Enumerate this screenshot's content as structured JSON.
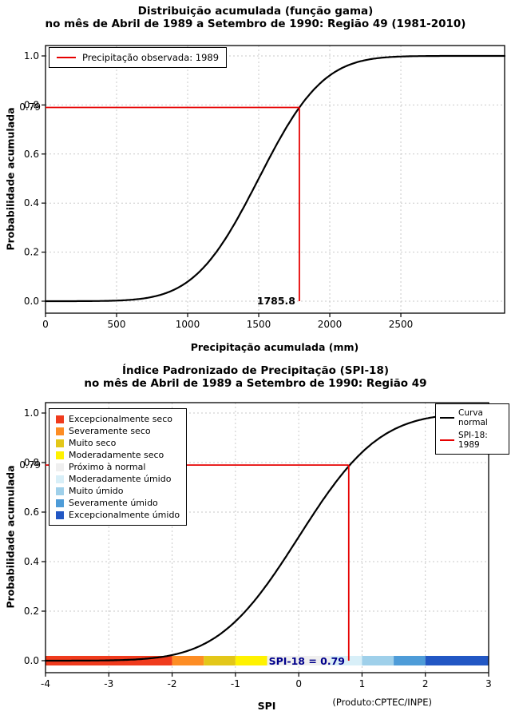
{
  "accent_red": "#E60000",
  "chart_data": [
    {
      "type": "line",
      "title": "Distribuição acumulada (função gama)",
      "subtitle": "no mês de Abril de 1989 a Setembro de 1990: Região 49 (1981-2010)",
      "xlabel": "Precipitação acumulada (mm)",
      "ylabel": "Probabilidade acumulada",
      "xlim": [
        0,
        3230
      ],
      "ylim": [
        0,
        1
      ],
      "xticks": [
        0,
        500,
        1000,
        1500,
        2000,
        2500
      ],
      "yticks": [
        0,
        0.2,
        0.4,
        0.6,
        0.8,
        1.0
      ],
      "grid": true,
      "legend": {
        "position": "top-left",
        "entries": [
          {
            "label": "Precipitação observada: 1989",
            "color": "#E60000",
            "type": "line"
          }
        ]
      },
      "series": [
        {
          "name": "Distribuição acumulada (função gama)",
          "color": "#000000",
          "model": "normal_cdf",
          "mean": 1500,
          "sd": 355,
          "points": [
            [
              0,
              0.0
            ],
            [
              200,
              0.0
            ],
            [
              400,
              0.001
            ],
            [
              600,
              0.006
            ],
            [
              700,
              0.012
            ],
            [
              800,
              0.024
            ],
            [
              900,
              0.046
            ],
            [
              1000,
              0.079
            ],
            [
              1100,
              0.129
            ],
            [
              1200,
              0.199
            ],
            [
              1300,
              0.287
            ],
            [
              1400,
              0.389
            ],
            [
              1500,
              0.5
            ],
            [
              1600,
              0.611
            ],
            [
              1700,
              0.713
            ],
            [
              1785.8,
              0.79
            ],
            [
              1900,
              0.87
            ],
            [
              2000,
              0.921
            ],
            [
              2100,
              0.954
            ],
            [
              2200,
              0.976
            ],
            [
              2300,
              0.988
            ],
            [
              2400,
              0.994
            ],
            [
              2500,
              0.998
            ],
            [
              2700,
              1.0
            ],
            [
              3000,
              1.0
            ]
          ]
        }
      ],
      "marker": {
        "x": 1785.8,
        "y": 0.79,
        "x_label": "1785.8",
        "y_label": "0.79",
        "color": "#E60000"
      }
    },
    {
      "type": "line",
      "title": "Índice Padronizado de Precipitação (SPI-18)",
      "subtitle": "no mês de Abril de 1989 a Setembro de 1990: Região 49",
      "xlabel": "SPI",
      "ylabel": "Probabilidade acumulada",
      "xlim": [
        -4,
        3
      ],
      "ylim": [
        0,
        1
      ],
      "xticks": [
        -4,
        -3,
        -2,
        -1,
        0,
        1,
        2,
        3
      ],
      "yticks": [
        0,
        0.2,
        0.4,
        0.6,
        0.8,
        1.0
      ],
      "grid": true,
      "footnote": "(Produto:CPTEC/INPE)",
      "legend_right": {
        "position": "top-right",
        "entries": [
          {
            "label": "Curva\nnormal",
            "color": "#000000",
            "type": "line"
          },
          {
            "label": "SPI-18: 1989",
            "color": "#E60000",
            "type": "line"
          }
        ]
      },
      "series": [
        {
          "name": "Curva normal",
          "color": "#000000",
          "model": "normal_cdf",
          "mean": 0,
          "sd": 1,
          "points": [
            [
              -4,
              0.0
            ],
            [
              -3.5,
              0.0
            ],
            [
              -3,
              0.001
            ],
            [
              -2.5,
              0.006
            ],
            [
              -2,
              0.023
            ],
            [
              -1.75,
              0.04
            ],
            [
              -1.5,
              0.067
            ],
            [
              -1.25,
              0.106
            ],
            [
              -1,
              0.159
            ],
            [
              -0.75,
              0.227
            ],
            [
              -0.5,
              0.309
            ],
            [
              -0.25,
              0.401
            ],
            [
              0,
              0.5
            ],
            [
              0.25,
              0.599
            ],
            [
              0.5,
              0.691
            ],
            [
              0.75,
              0.773
            ],
            [
              0.79,
              0.785
            ],
            [
              1,
              0.841
            ],
            [
              1.25,
              0.894
            ],
            [
              1.5,
              0.933
            ],
            [
              1.75,
              0.96
            ],
            [
              2,
              0.977
            ],
            [
              2.5,
              0.994
            ],
            [
              3,
              0.999
            ]
          ]
        }
      ],
      "marker": {
        "x": 0.79,
        "y": 0.79,
        "label": "SPI-18 = 0.79",
        "y_label": "0.79",
        "color": "#E60000",
        "label_color": "#00008B"
      },
      "categories": [
        {
          "label": "Excepcionalmente seco",
          "color": "#F03B1D",
          "range": [
            -4,
            -2
          ]
        },
        {
          "label": "Severamente seco",
          "color": "#FD8D24",
          "range": [
            -2,
            -1.5
          ]
        },
        {
          "label": "Muito seco",
          "color": "#E3C719",
          "range": [
            -1.5,
            -1
          ]
        },
        {
          "label": "Moderadamente seco",
          "color": "#FFF200",
          "range": [
            -1,
            -0.5
          ]
        },
        {
          "label": "Próximo à normal",
          "color": "#EFEFEF",
          "range": [
            -0.5,
            0.5
          ]
        },
        {
          "label": "Moderadamente úmido",
          "color": "#D8EFF8",
          "range": [
            0.5,
            1
          ]
        },
        {
          "label": "Muito úmido",
          "color": "#9FD0EA",
          "range": [
            1,
            1.5
          ]
        },
        {
          "label": "Severamente úmido",
          "color": "#4E9CD8",
          "range": [
            1.5,
            2
          ]
        },
        {
          "label": "Excepcionalmente úmido",
          "color": "#2257C4",
          "range": [
            2,
            3
          ]
        }
      ]
    }
  ]
}
